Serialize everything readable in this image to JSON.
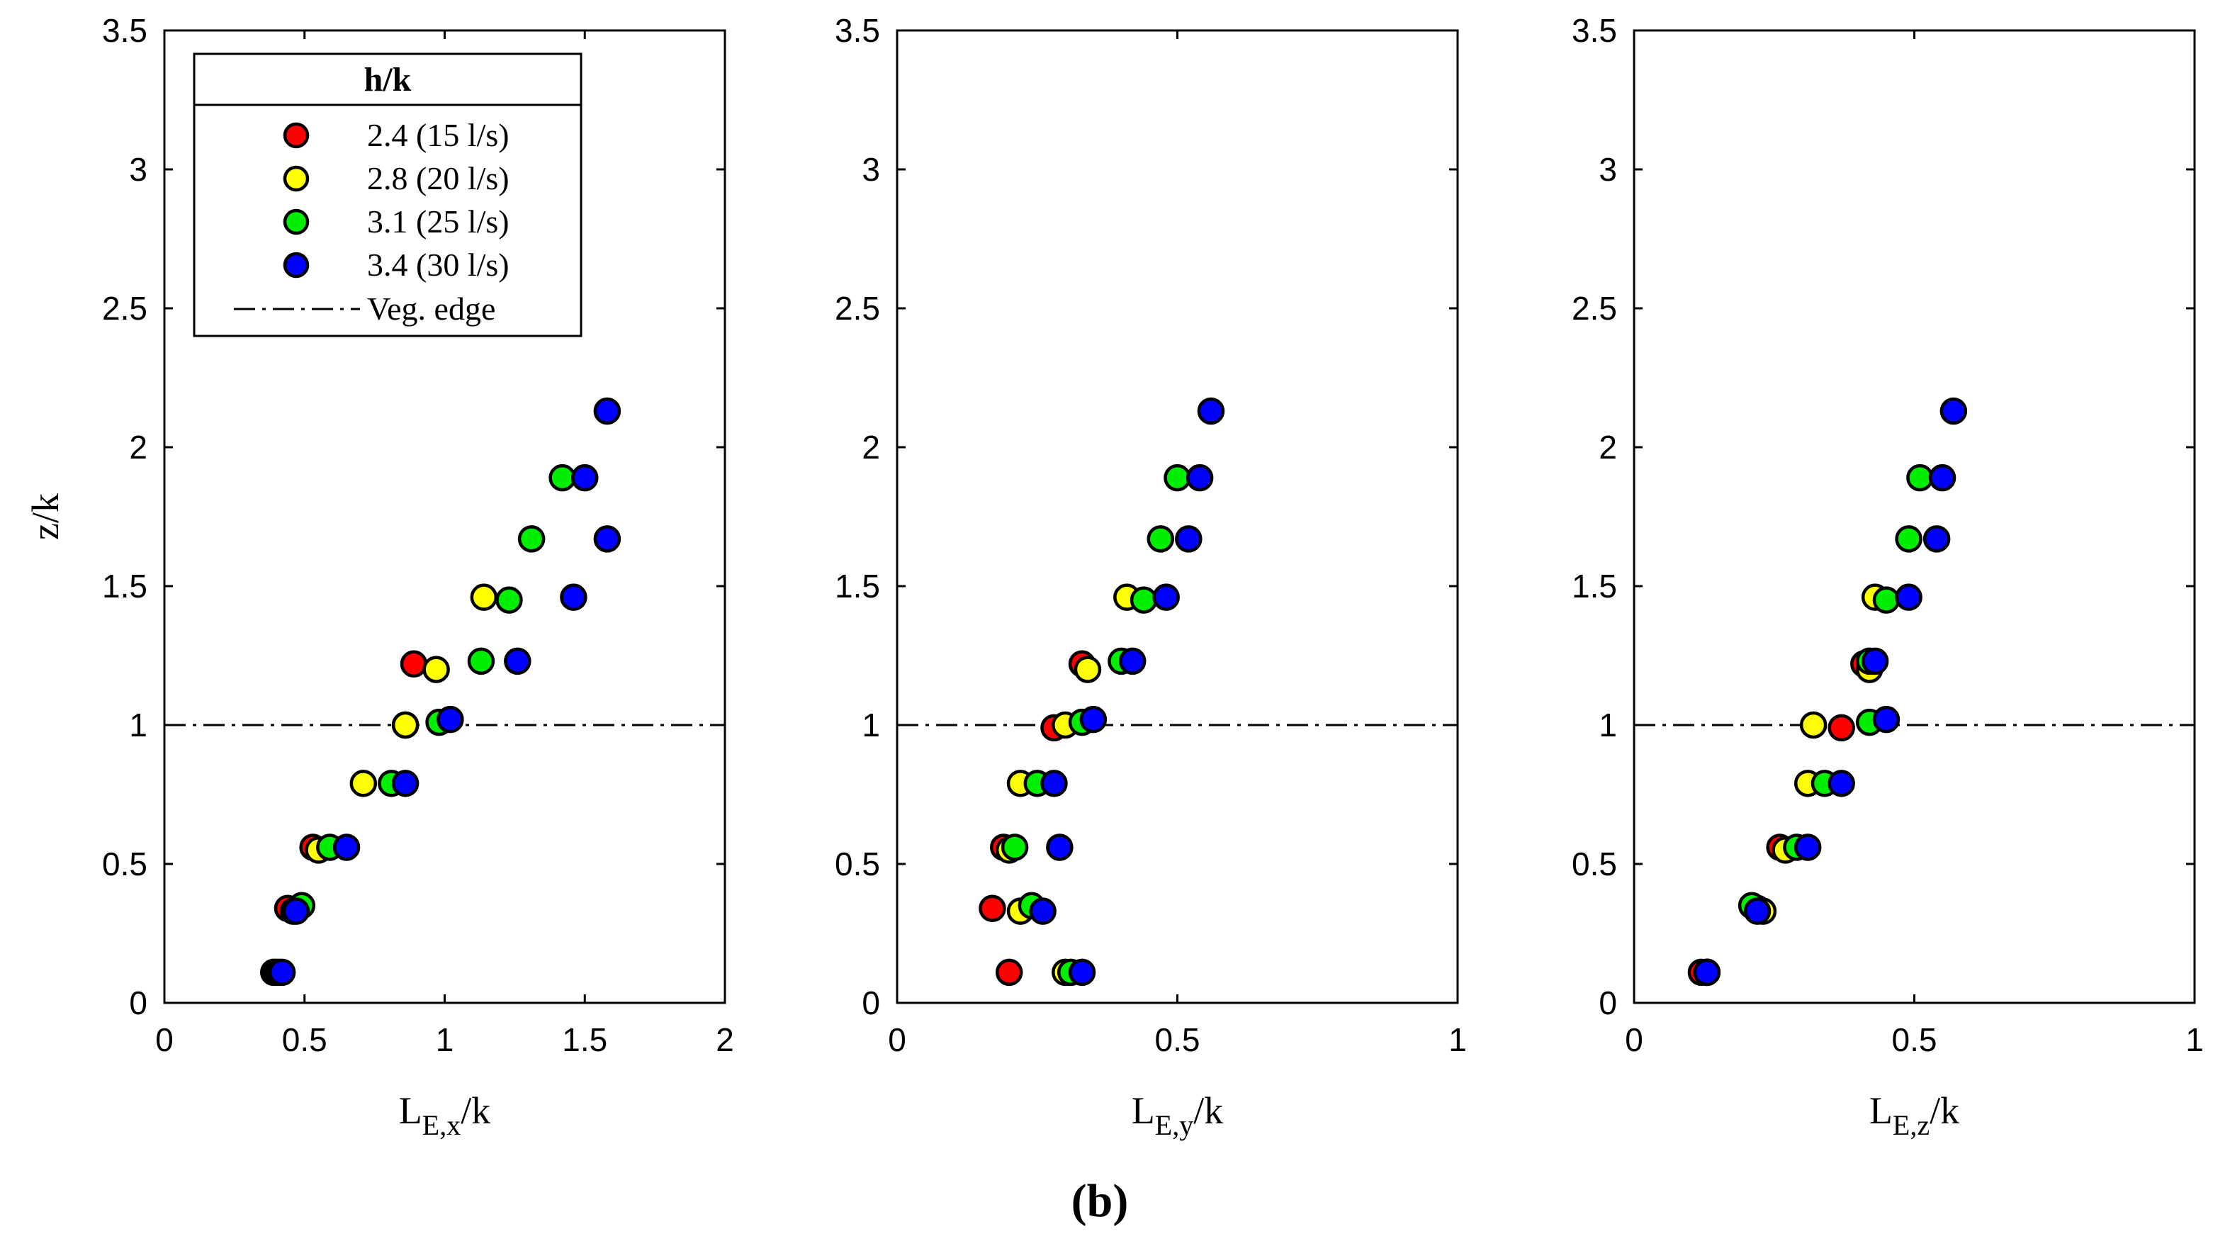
{
  "caption": "(b)",
  "colors": {
    "s24": "#ff0000",
    "s28": "#ffff00",
    "s31": "#00ee00",
    "s34": "#0000ff"
  },
  "legend": {
    "title": "h/k",
    "entries": [
      "2.4 (15 l/s)",
      "2.8 (20 l/s)",
      "3.1 (25 l/s)",
      "3.4 (30 l/s)"
    ],
    "veg_label": "Veg. edge"
  },
  "chart_data": [
    {
      "type": "scatter",
      "xlabel": {
        "base": "L",
        "sub": "E,x",
        "tail": "/k"
      },
      "ylabel": "z/k",
      "xlim": [
        0,
        2
      ],
      "ylim": [
        0,
        3.5
      ],
      "xticks": [
        0,
        0.5,
        1,
        1.5,
        2
      ],
      "xtick_labels": [
        "0",
        "0.5",
        "1",
        "1.5",
        "2"
      ],
      "yticks": [
        0,
        0.5,
        1,
        1.5,
        2,
        2.5,
        3,
        3.5
      ],
      "ytick_labels": [
        "0",
        "0.5",
        "1",
        "1.5",
        "2",
        "2.5",
        "3",
        "3.5"
      ],
      "reference_line": {
        "y": 1,
        "label": "Veg. edge"
      },
      "series": [
        {
          "name": "2.4 (15 l/s)",
          "color_key": "s24",
          "x": [
            0.39,
            0.44,
            0.53,
            0.86,
            0.89
          ],
          "y": [
            0.11,
            0.34,
            0.56,
            1.0,
            1.22
          ]
        },
        {
          "name": "2.8 (20 l/s)",
          "color_key": "s28",
          "x": [
            0.4,
            0.46,
            0.55,
            0.71,
            0.86,
            0.97,
            1.14
          ],
          "y": [
            0.11,
            0.33,
            0.55,
            0.79,
            1.0,
            1.2,
            1.46
          ]
        },
        {
          "name": "3.1 (25 l/s)",
          "color_key": "s31",
          "x": [
            0.41,
            0.49,
            0.59,
            0.81,
            0.98,
            1.13,
            1.23,
            1.31,
            1.42
          ],
          "y": [
            0.11,
            0.35,
            0.56,
            0.79,
            1.01,
            1.23,
            1.45,
            1.67,
            1.89
          ]
        },
        {
          "name": "3.4 (30 l/s)",
          "color_key": "s34",
          "x": [
            0.42,
            0.47,
            0.65,
            0.86,
            1.02,
            1.26,
            1.46,
            1.5,
            1.58,
            1.58
          ],
          "y": [
            0.11,
            0.33,
            0.56,
            0.79,
            1.02,
            1.23,
            1.46,
            1.89,
            1.67,
            2.13
          ]
        }
      ]
    },
    {
      "type": "scatter",
      "xlabel": {
        "base": "L",
        "sub": "E,y",
        "tail": "/k"
      },
      "ylabel": "",
      "xlim": [
        0,
        1
      ],
      "ylim": [
        0,
        3.5
      ],
      "xticks": [
        0,
        0.5,
        1
      ],
      "xtick_labels": [
        "0",
        "0.5",
        "1"
      ],
      "yticks": [
        0,
        0.5,
        1,
        1.5,
        2,
        2.5,
        3,
        3.5
      ],
      "ytick_labels": [
        "0",
        "0.5",
        "1",
        "1.5",
        "2",
        "2.5",
        "3",
        "3.5"
      ],
      "reference_line": {
        "y": 1,
        "label": "Veg. edge"
      },
      "series": [
        {
          "name": "2.4 (15 l/s)",
          "color_key": "s24",
          "x": [
            0.2,
            0.17,
            0.19,
            0.28,
            0.33
          ],
          "y": [
            0.11,
            0.34,
            0.56,
            0.99,
            1.22
          ]
        },
        {
          "name": "2.8 (20 l/s)",
          "color_key": "s28",
          "x": [
            0.3,
            0.22,
            0.2,
            0.22,
            0.3,
            0.34,
            0.41
          ],
          "y": [
            0.11,
            0.33,
            0.55,
            0.79,
            1.0,
            1.2,
            1.46
          ]
        },
        {
          "name": "3.1 (25 l/s)",
          "color_key": "s31",
          "x": [
            0.31,
            0.24,
            0.21,
            0.25,
            0.33,
            0.4,
            0.44,
            0.47,
            0.5
          ],
          "y": [
            0.11,
            0.35,
            0.56,
            0.79,
            1.01,
            1.23,
            1.45,
            1.67,
            1.89
          ]
        },
        {
          "name": "3.4 (30 l/s)",
          "color_key": "s34",
          "x": [
            0.33,
            0.26,
            0.29,
            0.28,
            0.35,
            0.42,
            0.48,
            0.52,
            0.54,
            0.56
          ],
          "y": [
            0.11,
            0.33,
            0.56,
            0.79,
            1.02,
            1.23,
            1.46,
            1.67,
            1.89,
            2.13
          ]
        }
      ]
    },
    {
      "type": "scatter",
      "xlabel": {
        "base": "L",
        "sub": "E,z",
        "tail": "/k"
      },
      "ylabel": "",
      "xlim": [
        0,
        1
      ],
      "ylim": [
        0,
        3.5
      ],
      "xticks": [
        0,
        0.5,
        1
      ],
      "xtick_labels": [
        "0",
        "0.5",
        "1"
      ],
      "yticks": [
        0,
        0.5,
        1,
        1.5,
        2,
        2.5,
        3,
        3.5
      ],
      "ytick_labels": [
        "0",
        "0.5",
        "1",
        "1.5",
        "2",
        "2.5",
        "3",
        "3.5"
      ],
      "reference_line": {
        "y": 1,
        "label": "Veg. edge"
      },
      "series": [
        {
          "name": "2.4 (15 l/s)",
          "color_key": "s24",
          "x": [
            0.12,
            0.22,
            0.26,
            0.37,
            0.41
          ],
          "y": [
            0.11,
            0.34,
            0.56,
            0.99,
            1.22
          ]
        },
        {
          "name": "2.8 (20 l/s)",
          "color_key": "s28",
          "x": [
            0.13,
            0.23,
            0.27,
            0.31,
            0.32,
            0.42,
            0.43
          ],
          "y": [
            0.11,
            0.33,
            0.55,
            0.79,
            1.0,
            1.2,
            1.46
          ]
        },
        {
          "name": "3.1 (25 l/s)",
          "color_key": "s31",
          "x": [
            0.13,
            0.21,
            0.29,
            0.34,
            0.42,
            0.42,
            0.45,
            0.49,
            0.51
          ],
          "y": [
            0.11,
            0.35,
            0.56,
            0.79,
            1.01,
            1.23,
            1.45,
            1.67,
            1.89
          ]
        },
        {
          "name": "3.4 (30 l/s)",
          "color_key": "s34",
          "x": [
            0.13,
            0.22,
            0.31,
            0.37,
            0.45,
            0.43,
            0.49,
            0.54,
            0.55,
            0.57
          ],
          "y": [
            0.11,
            0.33,
            0.56,
            0.79,
            1.02,
            1.23,
            1.46,
            1.67,
            1.89,
            2.13
          ]
        }
      ]
    }
  ]
}
